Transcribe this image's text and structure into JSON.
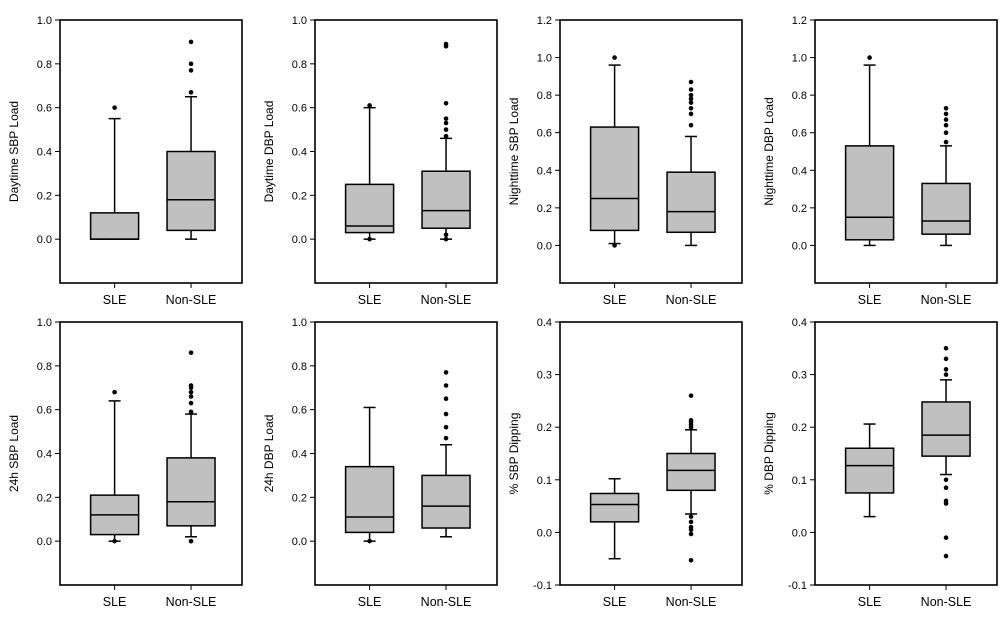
{
  "chart_data": [
    {
      "type": "box",
      "ylabel": "Daytime SBP Load",
      "categories": [
        "SLE",
        "Non-SLE"
      ],
      "ylim": [
        -0.2,
        1.0
      ],
      "yticks": [
        0.0,
        0.2,
        0.4,
        0.6,
        0.8,
        1.0
      ],
      "yticklabels": [
        "0.0",
        "0.2",
        "0.4",
        "0.6",
        "0.8",
        "1.0"
      ],
      "boxes": [
        {
          "whisker_low": 0.0,
          "q1": 0.0,
          "median": 0.0,
          "q3": 0.12,
          "whisker_high": 0.55,
          "outliers": [
            0.6
          ]
        },
        {
          "whisker_low": 0.0,
          "q1": 0.04,
          "median": 0.18,
          "q3": 0.4,
          "whisker_high": 0.65,
          "outliers": [
            0.67,
            0.77,
            0.8,
            0.9
          ]
        }
      ]
    },
    {
      "type": "box",
      "ylabel": "Daytime DBP Load",
      "categories": [
        "SLE",
        "Non-SLE"
      ],
      "ylim": [
        -0.2,
        1.0
      ],
      "yticks": [
        0.0,
        0.2,
        0.4,
        0.6,
        0.8,
        1.0
      ],
      "yticklabels": [
        "0.0",
        "0.2",
        "0.4",
        "0.6",
        "0.8",
        "1.0"
      ],
      "boxes": [
        {
          "whisker_low": 0.0,
          "q1": 0.03,
          "median": 0.06,
          "q3": 0.25,
          "whisker_high": 0.6,
          "outliers": [
            0.0,
            0.61
          ]
        },
        {
          "whisker_low": 0.0,
          "q1": 0.05,
          "median": 0.13,
          "q3": 0.31,
          "whisker_high": 0.46,
          "outliers": [
            0.0,
            0.02,
            0.47,
            0.5,
            0.53,
            0.55,
            0.62,
            0.88,
            0.89
          ]
        }
      ]
    },
    {
      "type": "box",
      "ylabel": "Nighttime SBP Load",
      "categories": [
        "SLE",
        "Non-SLE"
      ],
      "ylim": [
        -0.2,
        1.2
      ],
      "yticks": [
        0.0,
        0.2,
        0.4,
        0.6,
        0.8,
        1.0,
        1.2
      ],
      "yticklabels": [
        "0.0",
        "0.2",
        "0.4",
        "0.6",
        "0.8",
        "1.0",
        "1.2"
      ],
      "boxes": [
        {
          "whisker_low": 0.01,
          "q1": 0.08,
          "median": 0.25,
          "q3": 0.63,
          "whisker_high": 0.96,
          "outliers": [
            0.0,
            1.0
          ]
        },
        {
          "whisker_low": 0.0,
          "q1": 0.07,
          "median": 0.18,
          "q3": 0.39,
          "whisker_high": 0.58,
          "outliers": [
            0.64,
            0.7,
            0.73,
            0.76,
            0.78,
            0.8,
            0.83,
            0.87
          ]
        }
      ]
    },
    {
      "type": "box",
      "ylabel": "Nighttime DBP Load",
      "categories": [
        "SLE",
        "Non-SLE"
      ],
      "ylim": [
        -0.2,
        1.2
      ],
      "yticks": [
        0.0,
        0.2,
        0.4,
        0.6,
        0.8,
        1.0,
        1.2
      ],
      "yticklabels": [
        "0.0",
        "0.2",
        "0.4",
        "0.6",
        "0.8",
        "1.0",
        "1.2"
      ],
      "boxes": [
        {
          "whisker_low": 0.0,
          "q1": 0.03,
          "median": 0.15,
          "q3": 0.53,
          "whisker_high": 0.96,
          "outliers": [
            1.0
          ]
        },
        {
          "whisker_low": 0.0,
          "q1": 0.06,
          "median": 0.13,
          "q3": 0.33,
          "whisker_high": 0.53,
          "outliers": [
            0.55,
            0.6,
            0.64,
            0.67,
            0.7,
            0.73
          ]
        }
      ]
    },
    {
      "type": "box",
      "ylabel": "24h SBP Load",
      "categories": [
        "SLE",
        "Non-SLE"
      ],
      "ylim": [
        -0.2,
        1.0
      ],
      "yticks": [
        0.0,
        0.2,
        0.4,
        0.6,
        0.8,
        1.0
      ],
      "yticklabels": [
        "0.0",
        "0.2",
        "0.4",
        "0.6",
        "0.8",
        "1.0"
      ],
      "boxes": [
        {
          "whisker_low": 0.0,
          "q1": 0.03,
          "median": 0.12,
          "q3": 0.21,
          "whisker_high": 0.64,
          "outliers": [
            0.0,
            0.68
          ]
        },
        {
          "whisker_low": 0.02,
          "q1": 0.07,
          "median": 0.18,
          "q3": 0.38,
          "whisker_high": 0.58,
          "outliers": [
            0.0,
            0.59,
            0.63,
            0.66,
            0.68,
            0.7,
            0.71,
            0.86
          ]
        }
      ]
    },
    {
      "type": "box",
      "ylabel": "24h DBP Load",
      "categories": [
        "SLE",
        "Non-SLE"
      ],
      "ylim": [
        -0.2,
        1.0
      ],
      "yticks": [
        0.0,
        0.2,
        0.4,
        0.6,
        0.8,
        1.0
      ],
      "yticklabels": [
        "0.0",
        "0.2",
        "0.4",
        "0.6",
        "0.8",
        "1.0"
      ],
      "boxes": [
        {
          "whisker_low": 0.0,
          "q1": 0.04,
          "median": 0.11,
          "q3": 0.34,
          "whisker_high": 0.61,
          "outliers": [
            0.0
          ]
        },
        {
          "whisker_low": 0.02,
          "q1": 0.06,
          "median": 0.16,
          "q3": 0.3,
          "whisker_high": 0.44,
          "outliers": [
            0.47,
            0.52,
            0.58,
            0.65,
            0.71,
            0.77
          ]
        }
      ]
    },
    {
      "type": "box",
      "ylabel": "% SBP Dipping",
      "categories": [
        "SLE",
        "Non-SLE"
      ],
      "ylim": [
        -0.1,
        0.4
      ],
      "yticks": [
        -0.1,
        0.0,
        0.1,
        0.2,
        0.3,
        0.4
      ],
      "yticklabels": [
        "-0.1",
        "0.0",
        "0.1",
        "0.2",
        "0.3",
        "0.4"
      ],
      "boxes": [
        {
          "whisker_low": -0.05,
          "q1": 0.02,
          "median": 0.053,
          "q3": 0.074,
          "whisker_high": 0.102,
          "outliers": []
        },
        {
          "whisker_low": 0.035,
          "q1": 0.08,
          "median": 0.118,
          "q3": 0.15,
          "whisker_high": 0.195,
          "outliers": [
            -0.053,
            -0.003,
            0.005,
            0.01,
            0.02,
            0.03,
            0.2,
            0.205,
            0.21,
            0.213,
            0.26
          ]
        }
      ]
    },
    {
      "type": "box",
      "ylabel": "% DBP Dipping",
      "categories": [
        "SLE",
        "Non-SLE"
      ],
      "ylim": [
        -0.1,
        0.4
      ],
      "yticks": [
        -0.1,
        0.0,
        0.1,
        0.2,
        0.3,
        0.4
      ],
      "yticklabels": [
        "-0.1",
        "0.0",
        "0.1",
        "0.2",
        "0.3",
        "0.4"
      ],
      "boxes": [
        {
          "whisker_low": 0.03,
          "q1": 0.075,
          "median": 0.127,
          "q3": 0.16,
          "whisker_high": 0.206,
          "outliers": []
        },
        {
          "whisker_low": 0.11,
          "q1": 0.145,
          "median": 0.185,
          "q3": 0.248,
          "whisker_high": 0.29,
          "outliers": [
            -0.045,
            -0.01,
            0.055,
            0.06,
            0.085,
            0.1,
            0.3,
            0.31,
            0.33,
            0.35
          ]
        }
      ]
    }
  ],
  "colors": {
    "box_fill": "#c0c0c0",
    "stroke": "#000000",
    "background": "#ffffff"
  }
}
